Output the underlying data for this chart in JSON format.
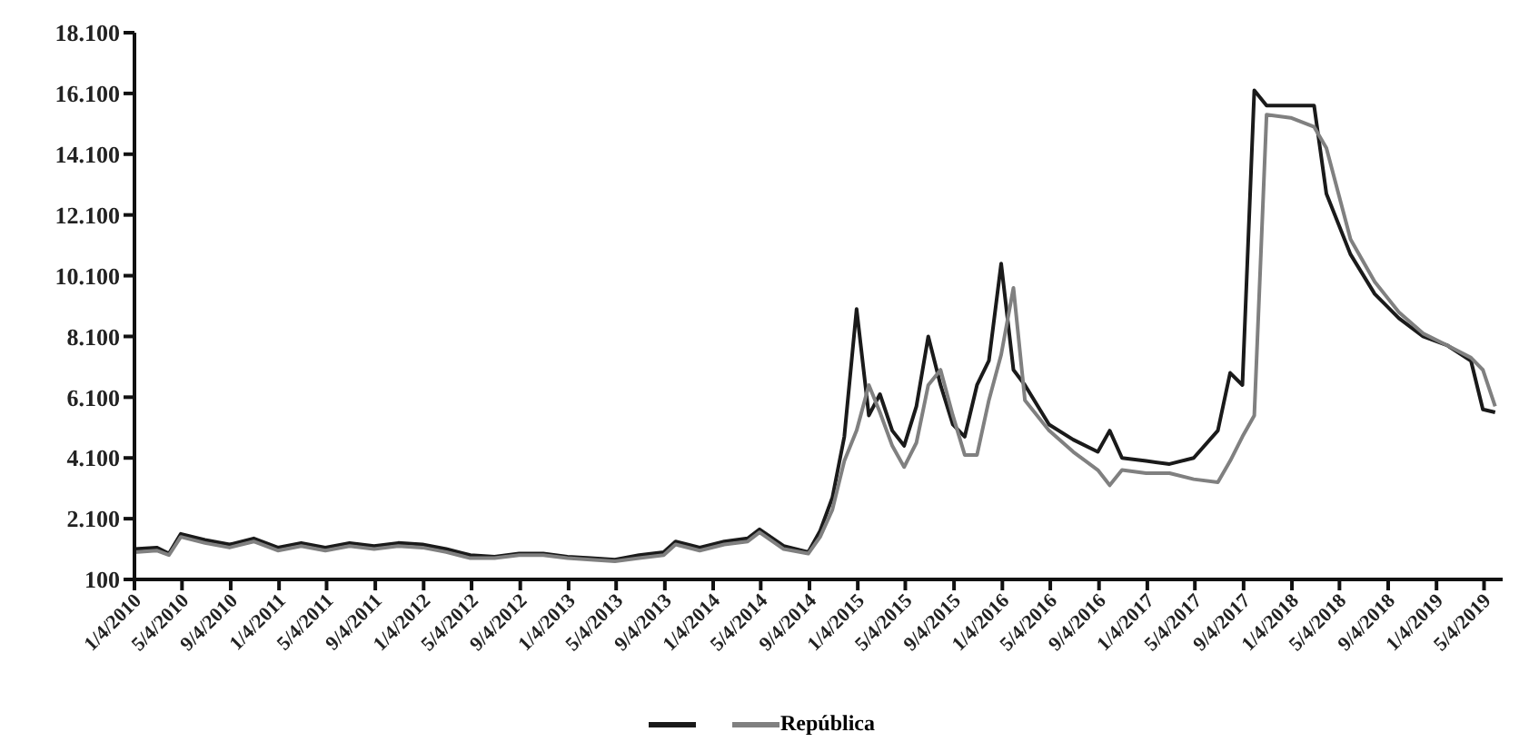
{
  "chart_data": {
    "type": "line",
    "x": [
      "2010-01-04",
      "2010-03-01",
      "2010-04-01",
      "2010-05-01",
      "2010-07-01",
      "2010-09-01",
      "2010-11-01",
      "2011-01-01",
      "2011-03-01",
      "2011-05-01",
      "2011-07-01",
      "2011-09-01",
      "2011-11-01",
      "2012-01-01",
      "2012-03-01",
      "2012-05-01",
      "2012-07-01",
      "2012-09-01",
      "2012-11-01",
      "2013-01-01",
      "2013-03-01",
      "2013-05-01",
      "2013-07-01",
      "2013-09-01",
      "2013-10-01",
      "2013-12-01",
      "2014-02-01",
      "2014-04-01",
      "2014-05-01",
      "2014-07-01",
      "2014-09-01",
      "2014-10-01",
      "2014-11-01",
      "2014-12-01",
      "2015-01-01",
      "2015-02-01",
      "2015-03-01",
      "2015-04-01",
      "2015-05-01",
      "2015-06-01",
      "2015-07-01",
      "2015-08-01",
      "2015-09-01",
      "2015-10-01",
      "2015-11-01",
      "2015-12-01",
      "2016-01-01",
      "2016-02-01",
      "2016-03-01",
      "2016-05-01",
      "2016-07-01",
      "2016-09-01",
      "2016-10-01",
      "2016-11-01",
      "2017-01-01",
      "2017-03-01",
      "2017-05-01",
      "2017-07-01",
      "2017-08-01",
      "2017-09-01",
      "2017-10-01",
      "2017-11-01",
      "2018-01-01",
      "2018-03-01",
      "2018-04-01",
      "2018-06-01",
      "2018-08-01",
      "2018-10-01",
      "2018-12-01",
      "2019-02-01",
      "2019-04-01",
      "2019-05-01",
      "2019-06-01"
    ],
    "series": [
      {
        "color": "#1a1a1a",
        "values": [
          1100,
          1150,
          950,
          1600,
          1400,
          1250,
          1450,
          1150,
          1300,
          1150,
          1300,
          1200,
          1300,
          1250,
          1100,
          900,
          850,
          950,
          950,
          850,
          800,
          750,
          900,
          1000,
          1350,
          1150,
          1350,
          1450,
          1750,
          1200,
          1000,
          1700,
          2800,
          4800,
          9000,
          5500,
          6200,
          5000,
          4500,
          5800,
          8100,
          6500,
          5200,
          4800,
          6500,
          7300,
          10500,
          7000,
          6500,
          5200,
          4700,
          4300,
          5000,
          4100,
          4000,
          3900,
          4100,
          5000,
          6900,
          6500,
          16200,
          15700,
          15700,
          15700,
          12800,
          10800,
          9500,
          8700,
          8100,
          7800,
          7300,
          5700,
          5600
        ]
      },
      {
        "name": "República",
        "color": "#808080",
        "values": [
          1000,
          1050,
          900,
          1500,
          1300,
          1150,
          1350,
          1050,
          1200,
          1050,
          1200,
          1100,
          1200,
          1150,
          1000,
          800,
          800,
          900,
          900,
          800,
          750,
          700,
          800,
          900,
          1250,
          1050,
          1250,
          1350,
          1650,
          1100,
          950,
          1500,
          2400,
          4000,
          5000,
          6500,
          5600,
          4500,
          3800,
          4600,
          6500,
          7000,
          5500,
          4200,
          4200,
          6000,
          7500,
          9700,
          6000,
          5000,
          4300,
          3700,
          3200,
          3700,
          3600,
          3600,
          3400,
          3300,
          4000,
          4800,
          5500,
          15400,
          15300,
          15000,
          14300,
          11300,
          9900,
          8900,
          8200,
          7800,
          7400,
          7000,
          5800
        ]
      }
    ],
    "xlim": [
      "2010-01-04",
      "2019-06-20"
    ],
    "xticks": [
      {
        "value": "2010-01-04",
        "label": "1/4/2010"
      },
      {
        "value": "2010-05-04",
        "label": "5/4/2010"
      },
      {
        "value": "2010-09-04",
        "label": "9/4/2010"
      },
      {
        "value": "2011-01-04",
        "label": "1/4/2011"
      },
      {
        "value": "2011-05-04",
        "label": "5/4/2011"
      },
      {
        "value": "2011-09-04",
        "label": "9/4/2011"
      },
      {
        "value": "2012-01-04",
        "label": "1/4/2012"
      },
      {
        "value": "2012-05-04",
        "label": "5/4/2012"
      },
      {
        "value": "2012-09-04",
        "label": "9/4/2012"
      },
      {
        "value": "2013-01-04",
        "label": "1/4/2013"
      },
      {
        "value": "2013-05-04",
        "label": "5/4/2013"
      },
      {
        "value": "2013-09-04",
        "label": "9/4/2013"
      },
      {
        "value": "2014-01-04",
        "label": "1/4/2014"
      },
      {
        "value": "2014-05-04",
        "label": "5/4/2014"
      },
      {
        "value": "2014-09-04",
        "label": "9/4/2014"
      },
      {
        "value": "2015-01-04",
        "label": "1/4/2015"
      },
      {
        "value": "2015-05-04",
        "label": "5/4/2015"
      },
      {
        "value": "2015-09-04",
        "label": "9/4/2015"
      },
      {
        "value": "2016-01-04",
        "label": "1/4/2016"
      },
      {
        "value": "2016-05-04",
        "label": "5/4/2016"
      },
      {
        "value": "2016-09-04",
        "label": "9/4/2016"
      },
      {
        "value": "2017-01-04",
        "label": "1/4/2017"
      },
      {
        "value": "2017-05-04",
        "label": "5/4/2017"
      },
      {
        "value": "2017-09-04",
        "label": "9/4/2017"
      },
      {
        "value": "2018-01-04",
        "label": "1/4/2018"
      },
      {
        "value": "2018-05-04",
        "label": "5/4/2018"
      },
      {
        "value": "2018-09-04",
        "label": "9/4/2018"
      },
      {
        "value": "2019-01-04",
        "label": "1/4/2019"
      },
      {
        "value": "2019-05-04",
        "label": "5/4/2019"
      }
    ],
    "ylim": [
      100,
      18100
    ],
    "yticks": [
      {
        "value": 100,
        "label": "100"
      },
      {
        "value": 2100,
        "label": "2.100"
      },
      {
        "value": 4100,
        "label": "4.100"
      },
      {
        "value": 6100,
        "label": "6.100"
      },
      {
        "value": 8100,
        "label": "8.100"
      },
      {
        "value": 10100,
        "label": "10.100"
      },
      {
        "value": 12100,
        "label": "12.100"
      },
      {
        "value": 14100,
        "label": "14.100"
      },
      {
        "value": 16100,
        "label": "16.100"
      },
      {
        "value": 18100,
        "label": "18.100"
      }
    ],
    "grid": false,
    "legend": "bottom",
    "marker": "none",
    "line_style": "solid"
  }
}
